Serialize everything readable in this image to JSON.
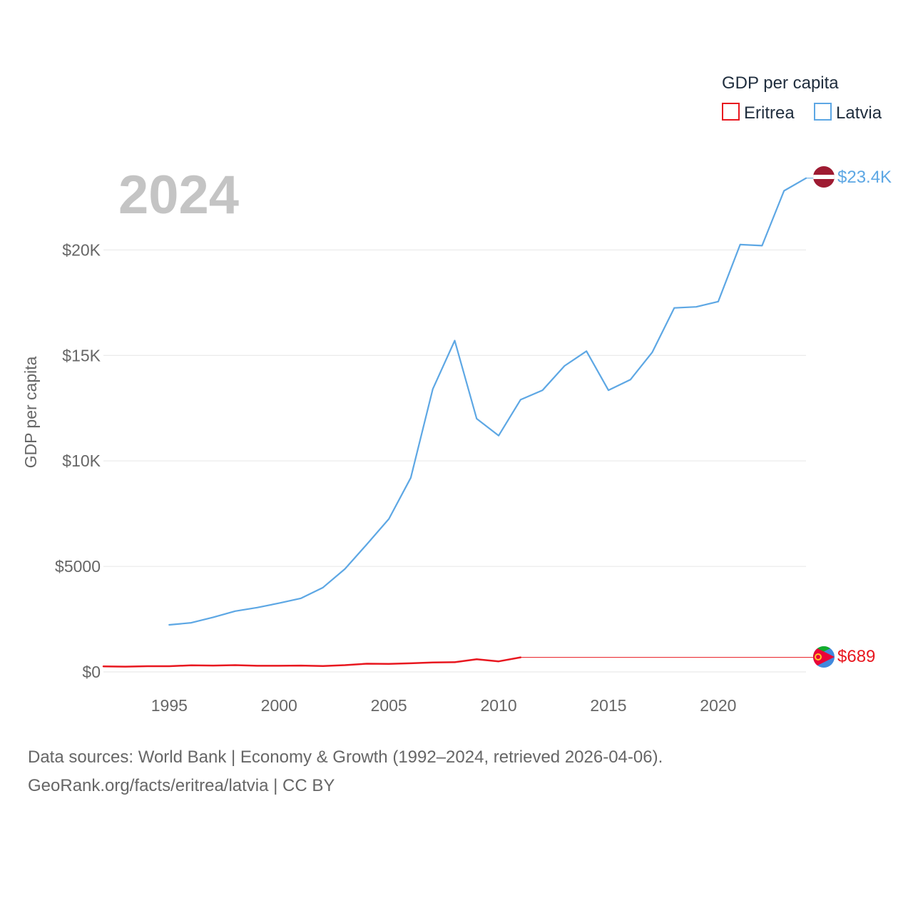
{
  "chart_data": {
    "type": "line",
    "current_year_label": "2024",
    "ylabel": "GDP per capita",
    "ylim": [
      0,
      24000
    ],
    "xlim": [
      1992,
      2024
    ],
    "y_ticks": [
      {
        "value": 0,
        "label": "$0"
      },
      {
        "value": 5000,
        "label": "$5000"
      },
      {
        "value": 10000,
        "label": "$10K"
      },
      {
        "value": 15000,
        "label": "$15K"
      },
      {
        "value": 20000,
        "label": "$20K"
      }
    ],
    "x_ticks": [
      {
        "value": 1995,
        "label": "1995"
      },
      {
        "value": 2000,
        "label": "2000"
      },
      {
        "value": 2005,
        "label": "2005"
      },
      {
        "value": 2010,
        "label": "2010"
      },
      {
        "value": 2015,
        "label": "2015"
      },
      {
        "value": 2020,
        "label": "2020"
      }
    ],
    "legend": {
      "title": "GDP per capita",
      "position": "top-right",
      "entries": [
        {
          "name": "Eritrea",
          "color": "#e8171f"
        },
        {
          "name": "Latvia",
          "color": "#5da7e4"
        }
      ]
    },
    "series": [
      {
        "name": "Eritrea",
        "color": "#e8171f",
        "end_label": "$689",
        "end_value": 689,
        "flag": "eritrea-flag",
        "x": [
          1992,
          1993,
          1994,
          1995,
          1996,
          1997,
          1998,
          1999,
          2000,
          2001,
          2002,
          2003,
          2004,
          2005,
          2006,
          2007,
          2008,
          2009,
          2010,
          2011
        ],
        "values": [
          260,
          250,
          270,
          270,
          310,
          300,
          320,
          290,
          290,
          300,
          280,
          320,
          390,
          380,
          410,
          450,
          460,
          600,
          500,
          689
        ],
        "carry_forward_to": 2024
      },
      {
        "name": "Latvia",
        "color": "#5da7e4",
        "end_label": "$23.4K",
        "end_value": 23400,
        "flag": "latvia-flag",
        "x": [
          1995,
          1996,
          1997,
          1998,
          1999,
          2000,
          2001,
          2002,
          2003,
          2004,
          2005,
          2006,
          2007,
          2008,
          2009,
          2010,
          2011,
          2012,
          2013,
          2014,
          2015,
          2016,
          2017,
          2018,
          2019,
          2020,
          2021,
          2022,
          2023,
          2024
        ],
        "values": [
          2230,
          2330,
          2590,
          2880,
          3050,
          3260,
          3490,
          4000,
          4880,
          6050,
          7250,
          9200,
          13400,
          15700,
          12000,
          11200,
          12900,
          13350,
          14500,
          15200,
          13350,
          13850,
          15150,
          17250,
          17300,
          17550,
          20250,
          20200,
          22800,
          23400
        ]
      }
    ]
  },
  "footer": {
    "line1": "Data sources: World Bank | Economy & Growth (1992–2024, retrieved 2026-04-06).",
    "line2": "GeoRank.org/facts/eritrea/latvia | CC BY"
  }
}
